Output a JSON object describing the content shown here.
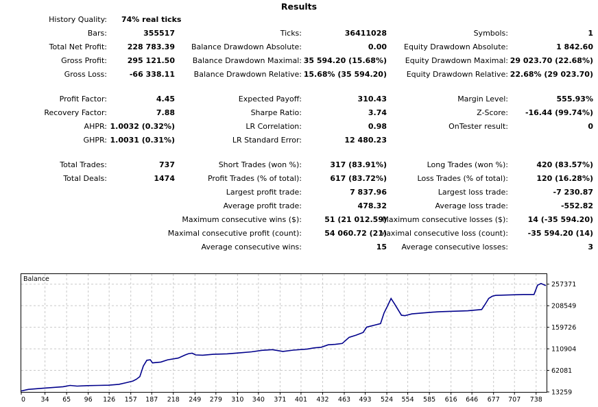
{
  "title": "Results",
  "rows": [
    {
      "cells": [
        {
          "label": "History Quality:",
          "value": "74% real ticks"
        }
      ]
    },
    {
      "cells": [
        {
          "label": "Bars:",
          "value": "355517"
        },
        {
          "label": "Ticks:",
          "value": "36411028"
        },
        {
          "label": "Symbols:",
          "value": "1"
        }
      ]
    },
    {
      "cells": [
        {
          "label": "Total Net Profit:",
          "value": "228 783.39"
        },
        {
          "label": "Balance Drawdown Absolute:",
          "value": "0.00"
        },
        {
          "label": "Equity Drawdown Absolute:",
          "value": "1 842.60"
        }
      ]
    },
    {
      "cells": [
        {
          "label": "Gross Profit:",
          "value": "295 121.50"
        },
        {
          "label": "Balance Drawdown Maximal:",
          "value": "35 594.20 (15.68%)"
        },
        {
          "label": "Equity Drawdown Maximal:",
          "value": "29 023.70 (22.68%)"
        }
      ]
    },
    {
      "cells": [
        {
          "label": "Gross Loss:",
          "value": "-66 338.11"
        },
        {
          "label": "Balance Drawdown Relative:",
          "value": "15.68% (35 594.20)"
        },
        {
          "label": "Equity Drawdown Relative:",
          "value": "22.68% (29 023.70)"
        }
      ]
    },
    {
      "cells": [
        {
          "label": "Profit Factor:",
          "value": "4.45"
        },
        {
          "label": "Expected Payoff:",
          "value": "310.43"
        },
        {
          "label": "Margin Level:",
          "value": "555.93%"
        }
      ]
    },
    {
      "cells": [
        {
          "label": "Recovery Factor:",
          "value": "7.88"
        },
        {
          "label": "Sharpe Ratio:",
          "value": "3.74"
        },
        {
          "label": "Z-Score:",
          "value": "-16.44 (99.74%)"
        }
      ]
    },
    {
      "cells": [
        {
          "label": "AHPR:",
          "value": "1.0032 (0.32%)"
        },
        {
          "label": "LR Correlation:",
          "value": "0.98"
        },
        {
          "label": "OnTester result:",
          "value": "0"
        }
      ]
    },
    {
      "cells": [
        {
          "label": "GHPR:",
          "value": "1.0031 (0.31%)"
        },
        {
          "label": "LR Standard Error:",
          "value": "12 480.23"
        }
      ]
    },
    {
      "cells": [
        {
          "label": "Total Trades:",
          "value": "737"
        },
        {
          "label": "Short Trades (won %):",
          "value": "317 (83.91%)"
        },
        {
          "label": "Long Trades (won %):",
          "value": "420 (83.57%)"
        }
      ]
    },
    {
      "cells": [
        {
          "label": "Total Deals:",
          "value": "1474"
        },
        {
          "label": "Profit Trades (% of total):",
          "value": "617 (83.72%)"
        },
        {
          "label": "Loss Trades (% of total):",
          "value": "120 (16.28%)"
        }
      ]
    },
    {
      "cells": [
        {
          "label": "",
          "value": ""
        },
        {
          "label": "Largest profit trade:",
          "value": "7 837.96"
        },
        {
          "label": "Largest loss trade:",
          "value": "-7 230.87"
        }
      ]
    },
    {
      "cells": [
        {
          "label": "",
          "value": ""
        },
        {
          "label": "Average profit trade:",
          "value": "478.32"
        },
        {
          "label": "Average loss trade:",
          "value": "-552.82"
        }
      ]
    },
    {
      "cells": [
        {
          "label": "",
          "value": ""
        },
        {
          "label": "Maximum consecutive wins ($):",
          "value": "51 (21 012.59)"
        },
        {
          "label": "Maximum consecutive losses ($):",
          "value": "14 (-35 594.20)"
        }
      ]
    },
    {
      "cells": [
        {
          "label": "",
          "value": ""
        },
        {
          "label": "Maximal consecutive profit (count):",
          "value": "54 060.72 (21)"
        },
        {
          "label": "Maximal consecutive loss (count):",
          "value": "-35 594.20 (14)"
        }
      ]
    },
    {
      "cells": [
        {
          "label": "",
          "value": ""
        },
        {
          "label": "Average consecutive wins:",
          "value": "15"
        },
        {
          "label": "Average consecutive losses:",
          "value": "3"
        }
      ]
    }
  ],
  "chart": {
    "legend": "Balance",
    "line_color": "#00008b",
    "grid_color": "#c8c8c8"
  },
  "chart_data": {
    "type": "line",
    "title": "",
    "xlabel": "",
    "ylabel": "",
    "xlim": [
      0,
      752
    ],
    "ylim": [
      13259,
      281783
    ],
    "grid": true,
    "legend": "top-left",
    "x_ticks": [
      "0",
      "34",
      "65",
      "96",
      "126",
      "157",
      "187",
      "218",
      "249",
      "279",
      "310",
      "340",
      "371",
      "401",
      "432",
      "463",
      "493",
      "524",
      "554",
      "585",
      "616",
      "646",
      "677",
      "707",
      "738"
    ],
    "y_ticks": [
      "257371",
      "208549",
      "159726",
      "110904",
      "62081",
      "13259"
    ],
    "series": [
      {
        "name": "Balance",
        "x": [
          0,
          10,
          30,
          60,
          70,
          80,
          95,
          110,
          125,
          140,
          150,
          160,
          165,
          170,
          175,
          180,
          185,
          188,
          200,
          210,
          225,
          235,
          240,
          245,
          250,
          260,
          275,
          295,
          315,
          330,
          345,
          360,
          375,
          390,
          410,
          420,
          430,
          440,
          450,
          460,
          470,
          480,
          490,
          495,
          500,
          505,
          515,
          520,
          525,
          530,
          535,
          545,
          550,
          555,
          560,
          575,
          590,
          600,
          640,
          660,
          665,
          670,
          675,
          680,
          700,
          720,
          735,
          740,
          745,
          752
        ],
        "y": [
          15500,
          19000,
          21500,
          25000,
          28000,
          26500,
          27500,
          28000,
          28500,
          30500,
          34000,
          38000,
          42000,
          48000,
          72000,
          85000,
          86000,
          79000,
          81000,
          86000,
          90000,
          97000,
          100000,
          101000,
          97000,
          96500,
          98500,
          99500,
          102000,
          104000,
          107500,
          109000,
          105000,
          108000,
          110500,
          113000,
          114500,
          120000,
          121000,
          123000,
          137000,
          142000,
          148000,
          160000,
          162000,
          164000,
          168000,
          192000,
          208000,
          225000,
          213000,
          187000,
          186000,
          188000,
          190000,
          192000,
          194000,
          195000,
          197000,
          200000,
          212000,
          225000,
          230000,
          232000,
          233000,
          234000,
          234000,
          255000,
          259000,
          254000
        ]
      }
    ]
  }
}
